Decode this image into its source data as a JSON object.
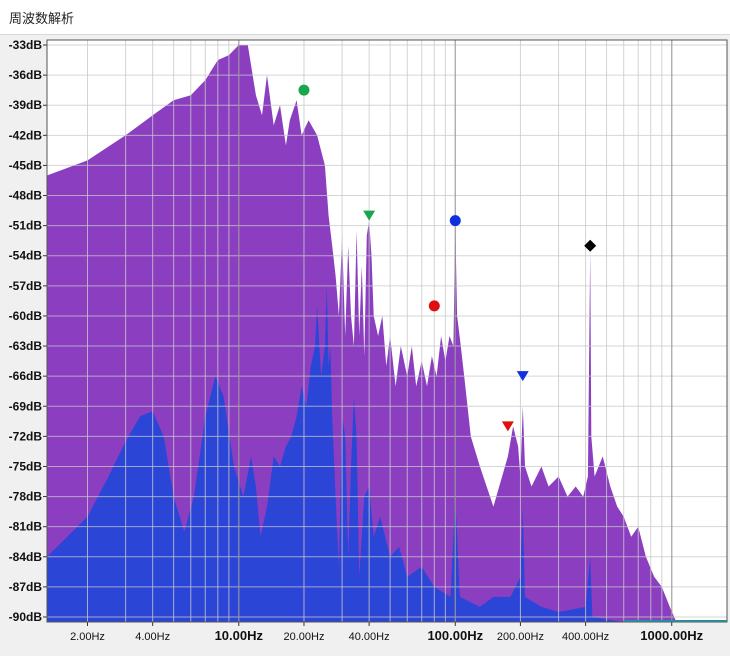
{
  "window": {
    "title": "周波数解析"
  },
  "chart_data": {
    "type": "area",
    "xscale": "log",
    "xlim": [
      1.3,
      1800
    ],
    "ylim": [
      -90.5,
      -32.5
    ],
    "yticks": [
      -33,
      -36,
      -39,
      -42,
      -45,
      -48,
      -51,
      -54,
      -57,
      -60,
      -63,
      -66,
      -69,
      -72,
      -75,
      -78,
      -81,
      -84,
      -87,
      -90
    ],
    "ytick_labels": [
      "-33dB",
      "-36dB",
      "-39dB",
      "-42dB",
      "-45dB",
      "-48dB",
      "-51dB",
      "-54dB",
      "-57dB",
      "-60dB",
      "-63dB",
      "-66dB",
      "-69dB",
      "-72dB",
      "-75dB",
      "-78dB",
      "-81dB",
      "-84dB",
      "-87dB",
      "-90dB"
    ],
    "xticks": [
      {
        "value": 2,
        "label": "2.00Hz",
        "bold": false
      },
      {
        "value": 4,
        "label": "4.00Hz",
        "bold": false
      },
      {
        "value": 10,
        "label": "10.00Hz",
        "bold": true
      },
      {
        "value": 20,
        "label": "20.00Hz",
        "bold": false
      },
      {
        "value": 40,
        "label": "40.00Hz",
        "bold": false
      },
      {
        "value": 100,
        "label": "100.00Hz",
        "bold": true
      },
      {
        "value": 200,
        "label": "200.00Hz",
        "bold": false
      },
      {
        "value": 400,
        "label": "400.00Hz",
        "bold": false
      },
      {
        "value": 1000,
        "label": "1000.00Hz",
        "bold": true
      }
    ],
    "grid": true,
    "series": [
      {
        "color": "#8b3fc0",
        "points": [
          [
            1.3,
            -46
          ],
          [
            2,
            -44.5
          ],
          [
            3,
            -42
          ],
          [
            4,
            -40
          ],
          [
            5,
            -38.5
          ],
          [
            6,
            -38
          ],
          [
            7,
            -36.5
          ],
          [
            8,
            -34.5
          ],
          [
            9,
            -34
          ],
          [
            10,
            -33
          ],
          [
            11,
            -33
          ],
          [
            12,
            -38
          ],
          [
            12.8,
            -40
          ],
          [
            13.5,
            -36
          ],
          [
            14.5,
            -41
          ],
          [
            15.5,
            -39
          ],
          [
            16.5,
            -43
          ],
          [
            17.2,
            -40.5
          ],
          [
            18.5,
            -38.5
          ],
          [
            19.5,
            -42
          ],
          [
            21,
            -40.5
          ],
          [
            23,
            -42
          ],
          [
            25,
            -45
          ],
          [
            26,
            -50
          ],
          [
            27,
            -53
          ],
          [
            28,
            -56
          ],
          [
            29,
            -60
          ],
          [
            30,
            -52
          ],
          [
            31,
            -62
          ],
          [
            32,
            -53
          ],
          [
            33,
            -60
          ],
          [
            34,
            -63
          ],
          [
            35,
            -51.5
          ],
          [
            36,
            -62
          ],
          [
            37,
            -55
          ],
          [
            38,
            -64
          ],
          [
            39,
            -52
          ],
          [
            40,
            -50.5
          ],
          [
            41,
            -54
          ],
          [
            42,
            -60
          ],
          [
            44,
            -62
          ],
          [
            46,
            -60
          ],
          [
            48,
            -65
          ],
          [
            50,
            -62
          ],
          [
            53,
            -67
          ],
          [
            56,
            -63
          ],
          [
            60,
            -66
          ],
          [
            63,
            -63
          ],
          [
            66,
            -67
          ],
          [
            70,
            -64.5
          ],
          [
            74,
            -67
          ],
          [
            78,
            -64
          ],
          [
            82,
            -66
          ],
          [
            86,
            -62
          ],
          [
            90,
            -64.5
          ],
          [
            94,
            -62
          ],
          [
            98,
            -63
          ],
          [
            100,
            -51
          ],
          [
            102,
            -60
          ],
          [
            106,
            -63
          ],
          [
            110,
            -66
          ],
          [
            118,
            -72
          ],
          [
            130,
            -75
          ],
          [
            150,
            -79
          ],
          [
            175,
            -74
          ],
          [
            185,
            -71
          ],
          [
            195,
            -73
          ],
          [
            200,
            -76
          ],
          [
            205,
            -69
          ],
          [
            210,
            -75
          ],
          [
            225,
            -77
          ],
          [
            250,
            -75
          ],
          [
            270,
            -77
          ],
          [
            300,
            -76
          ],
          [
            330,
            -78
          ],
          [
            360,
            -77
          ],
          [
            390,
            -78
          ],
          [
            410,
            -76
          ],
          [
            420,
            -53.5
          ],
          [
            425,
            -72
          ],
          [
            440,
            -76
          ],
          [
            480,
            -74
          ],
          [
            520,
            -77
          ],
          [
            560,
            -79
          ],
          [
            600,
            -80
          ],
          [
            650,
            -82
          ],
          [
            700,
            -81
          ],
          [
            760,
            -84
          ],
          [
            830,
            -86
          ],
          [
            900,
            -87
          ],
          [
            980,
            -89
          ],
          [
            1050,
            -90.5
          ]
        ]
      },
      {
        "color": "#2b45d6",
        "points": [
          [
            1.3,
            -84
          ],
          [
            2,
            -80
          ],
          [
            2.5,
            -76
          ],
          [
            3,
            -72.5
          ],
          [
            3.5,
            -70
          ],
          [
            4,
            -69.5
          ],
          [
            4.5,
            -72
          ],
          [
            5,
            -78
          ],
          [
            5.6,
            -81.5
          ],
          [
            6.2,
            -78
          ],
          [
            7,
            -70
          ],
          [
            7.8,
            -66
          ],
          [
            8.5,
            -68
          ],
          [
            9.5,
            -75
          ],
          [
            10.5,
            -78
          ],
          [
            11.4,
            -74
          ],
          [
            12,
            -77
          ],
          [
            12.6,
            -82
          ],
          [
            13.5,
            -79
          ],
          [
            14.5,
            -74
          ],
          [
            15.5,
            -75
          ],
          [
            16.5,
            -73
          ],
          [
            17.5,
            -72
          ],
          [
            18.5,
            -70
          ],
          [
            19.5,
            -67
          ],
          [
            20.5,
            -69
          ],
          [
            21.5,
            -65
          ],
          [
            22.5,
            -63
          ],
          [
            23,
            -59
          ],
          [
            24,
            -66
          ],
          [
            25,
            -63
          ],
          [
            25.5,
            -57
          ],
          [
            26,
            -65
          ],
          [
            26.5,
            -63
          ],
          [
            27,
            -70
          ],
          [
            28,
            -78
          ],
          [
            29,
            -85
          ],
          [
            30,
            -70
          ],
          [
            31,
            -72
          ],
          [
            32,
            -84
          ],
          [
            33,
            -75
          ],
          [
            34,
            -68
          ],
          [
            35,
            -72
          ],
          [
            36,
            -86
          ],
          [
            38,
            -78
          ],
          [
            40,
            -77
          ],
          [
            42,
            -82
          ],
          [
            45,
            -80
          ],
          [
            50,
            -84
          ],
          [
            55,
            -83
          ],
          [
            60,
            -86
          ],
          [
            70,
            -85
          ],
          [
            80,
            -87
          ],
          [
            95,
            -88
          ],
          [
            100,
            -78
          ],
          [
            105,
            -88
          ],
          [
            130,
            -89
          ],
          [
            150,
            -88
          ],
          [
            180,
            -88
          ],
          [
            200,
            -86
          ],
          [
            205,
            -79
          ],
          [
            210,
            -88
          ],
          [
            250,
            -89
          ],
          [
            300,
            -89.5
          ],
          [
            400,
            -89
          ],
          [
            420,
            -84
          ],
          [
            430,
            -90
          ],
          [
            600,
            -90.5
          ],
          [
            1800,
            -90.5
          ]
        ]
      }
    ],
    "markers": [
      {
        "x": 20,
        "y": -37.5,
        "shape": "circle",
        "color": "#1aa54f"
      },
      {
        "x": 40,
        "y": -50,
        "shape": "triangle-down",
        "color": "#1aa54f"
      },
      {
        "x": 100,
        "y": -50.5,
        "shape": "circle",
        "color": "#1030e0"
      },
      {
        "x": 80,
        "y": -59,
        "shape": "circle",
        "color": "#e01010"
      },
      {
        "x": 205,
        "y": -66,
        "shape": "triangle-down",
        "color": "#1030e0"
      },
      {
        "x": 175,
        "y": -71,
        "shape": "triangle-down",
        "color": "#e01010"
      },
      {
        "x": 420,
        "y": -53,
        "shape": "diamond",
        "color": "#000000"
      }
    ]
  }
}
